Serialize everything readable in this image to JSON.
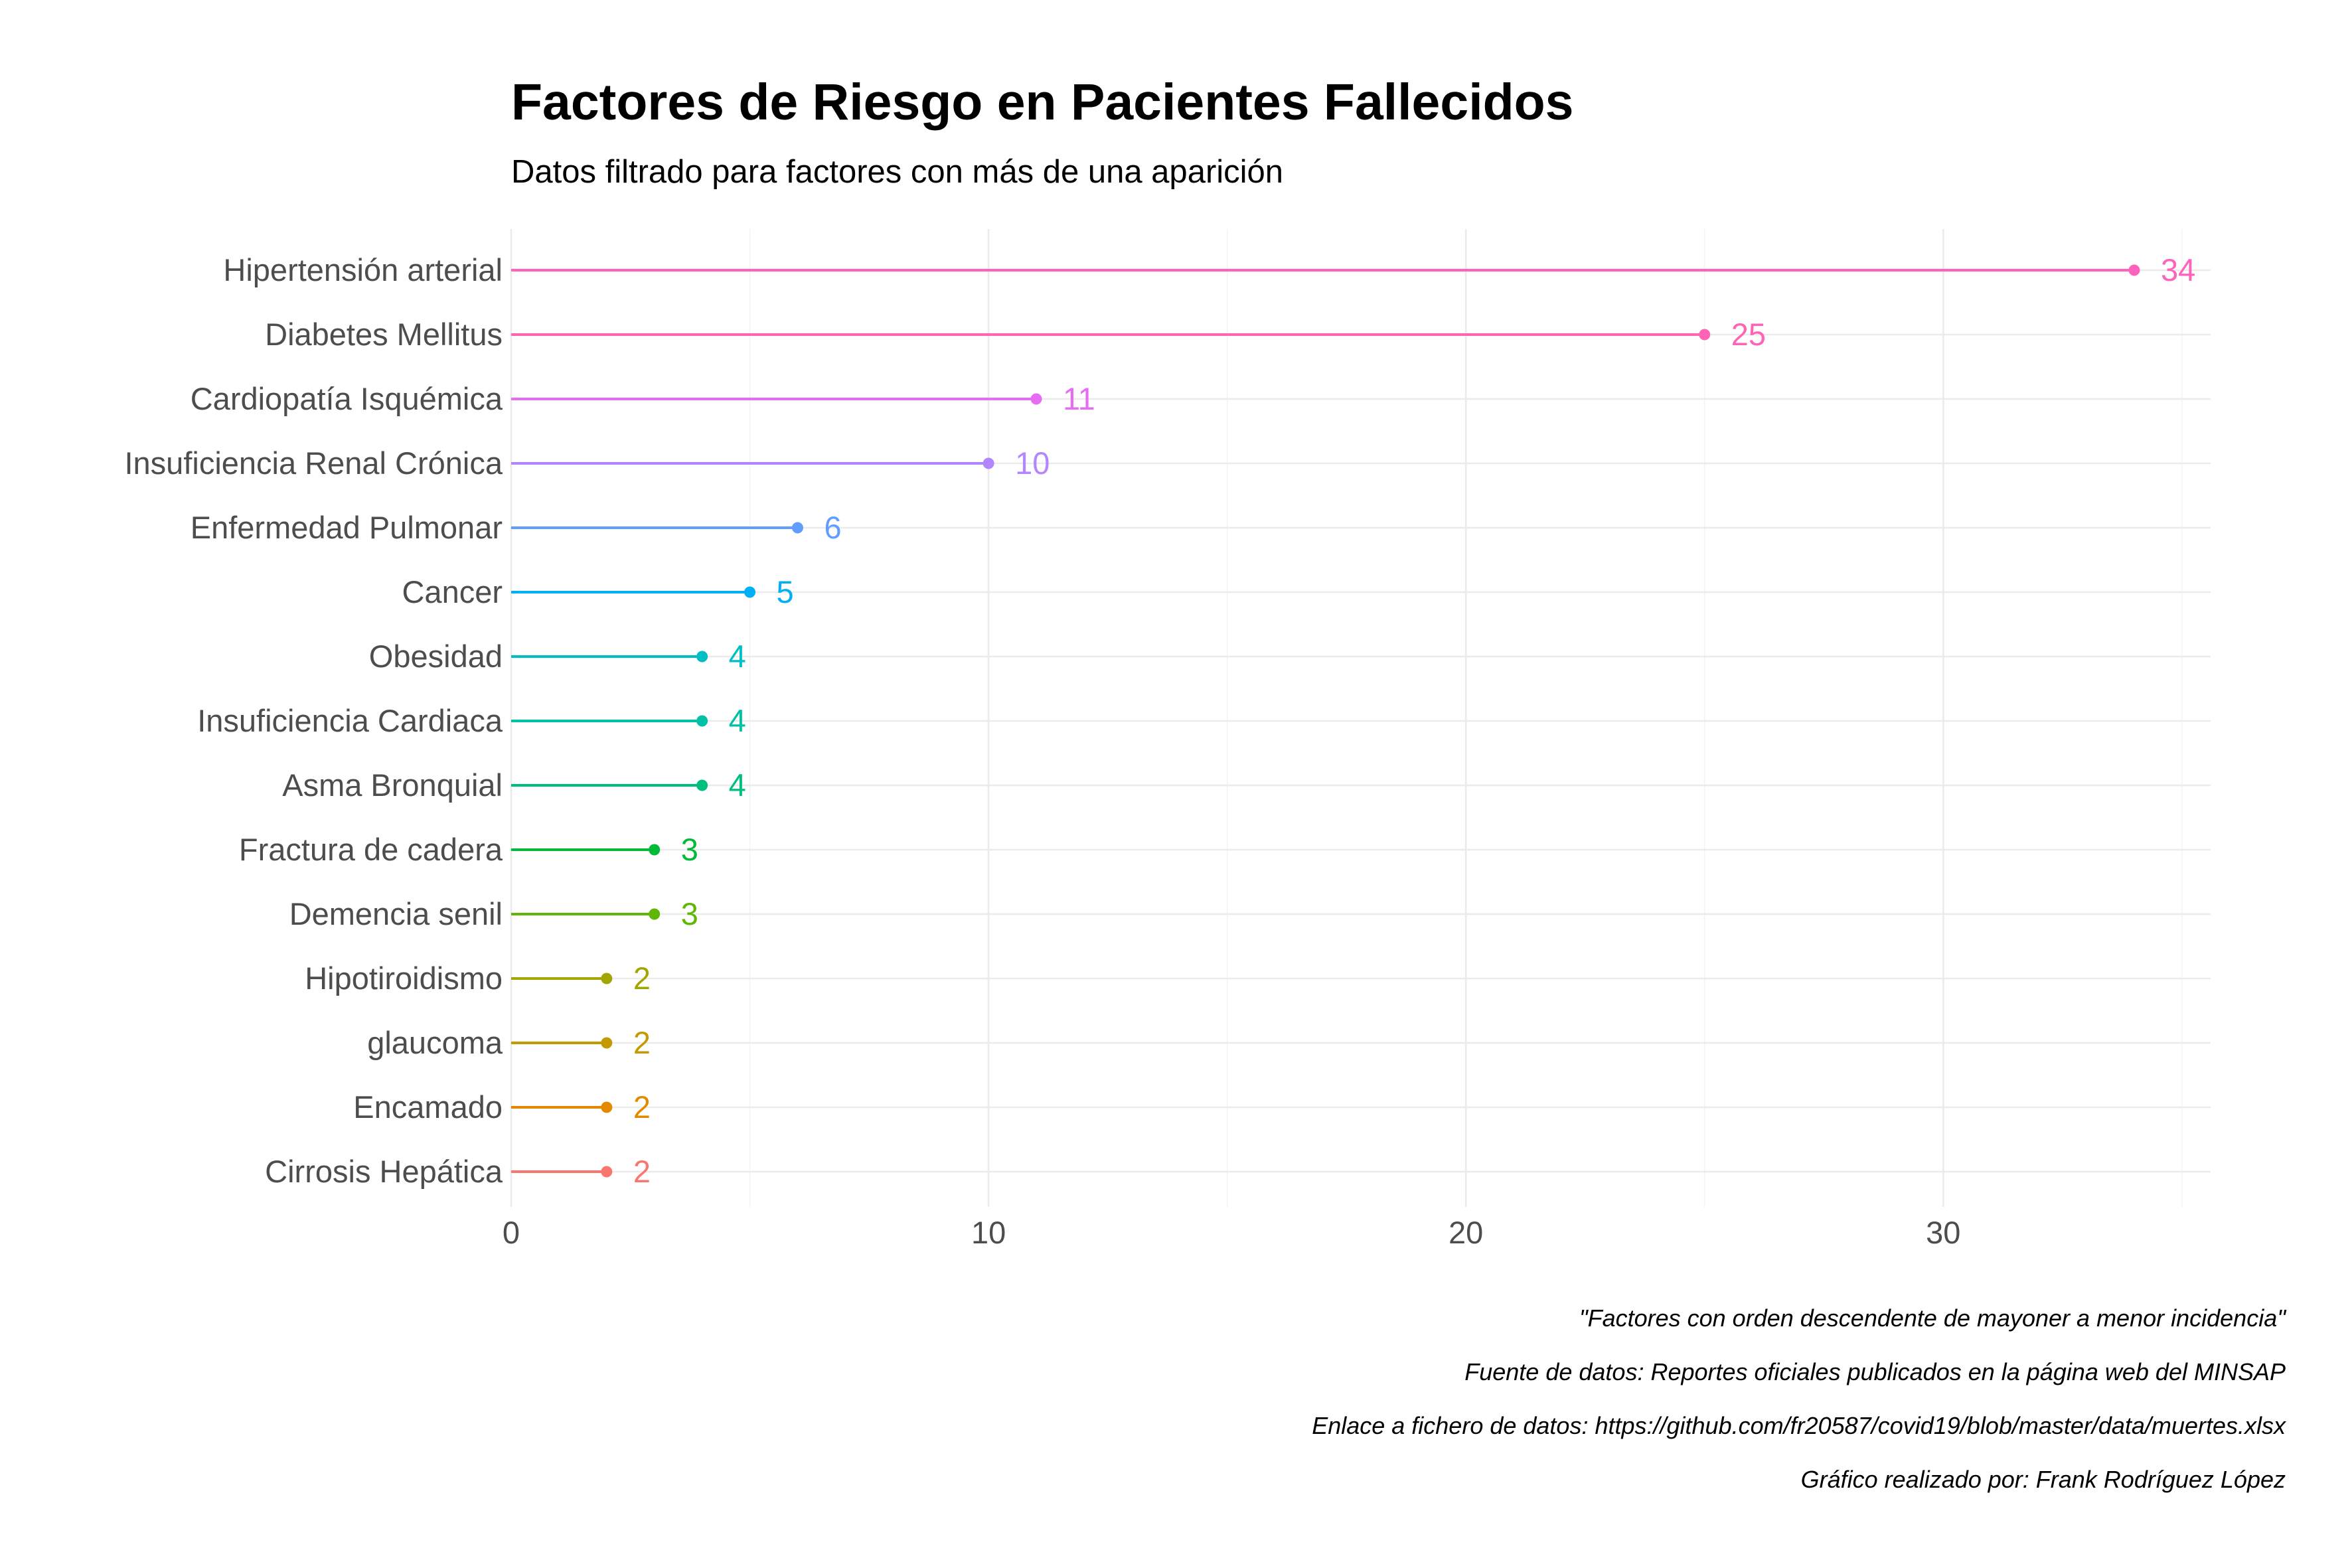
{
  "chart_data": {
    "type": "lollipop",
    "title": "Factores de Riesgo en Pacientes Fallecidos",
    "subtitle": "Datos filtrado para factores con más de una aparición",
    "xlabel": "",
    "ylabel": "",
    "xlim": [
      0,
      35.6
    ],
    "x_ticks": [
      "0",
      "10",
      "20",
      "30"
    ],
    "grid": true,
    "legend": "none",
    "categories": [
      "Hipertensión arterial",
      "Diabetes Mellitus",
      "Cardiopatía Isquémica",
      "Insuficiencia Renal Crónica",
      "Enfermedad Pulmonar",
      "Cancer",
      "Obesidad",
      "Insuficiencia Cardiaca",
      "Asma Bronquial",
      "Fractura de cadera",
      "Demencia senil",
      "Hipotiroidismo",
      "glaucoma",
      "Encamado",
      "Cirrosis Hepática"
    ],
    "values": [
      34,
      25,
      11,
      10,
      6,
      5,
      4,
      4,
      4,
      3,
      3,
      2,
      2,
      2,
      2
    ],
    "value_labels": [
      "34",
      "25",
      "11",
      "10",
      "6",
      "5",
      "4",
      "4",
      "4",
      "3",
      "3",
      "2",
      "2",
      "2",
      "2"
    ],
    "colors": [
      "#FF62BC",
      "#FF63B6",
      "#E76BF3",
      "#B385FF",
      "#619CFF",
      "#00B0F6",
      "#00BFC4",
      "#00C1A3",
      "#00BF7D",
      "#00BA38",
      "#5FB604",
      "#A3A500",
      "#C49A00",
      "#E38900",
      "#F8766D"
    ],
    "captions": [
      "\"Factores con orden descendente de mayoner a menor incidencia\"",
      "Fuente de datos: Reportes oficiales publicados en la página web del MINSAP",
      "Enlace a fichero de datos: https://github.com/fr20587/covid19/blob/master/data/muertes.xlsx",
      "Gráfico realizado por: Frank Rodríguez López"
    ]
  }
}
